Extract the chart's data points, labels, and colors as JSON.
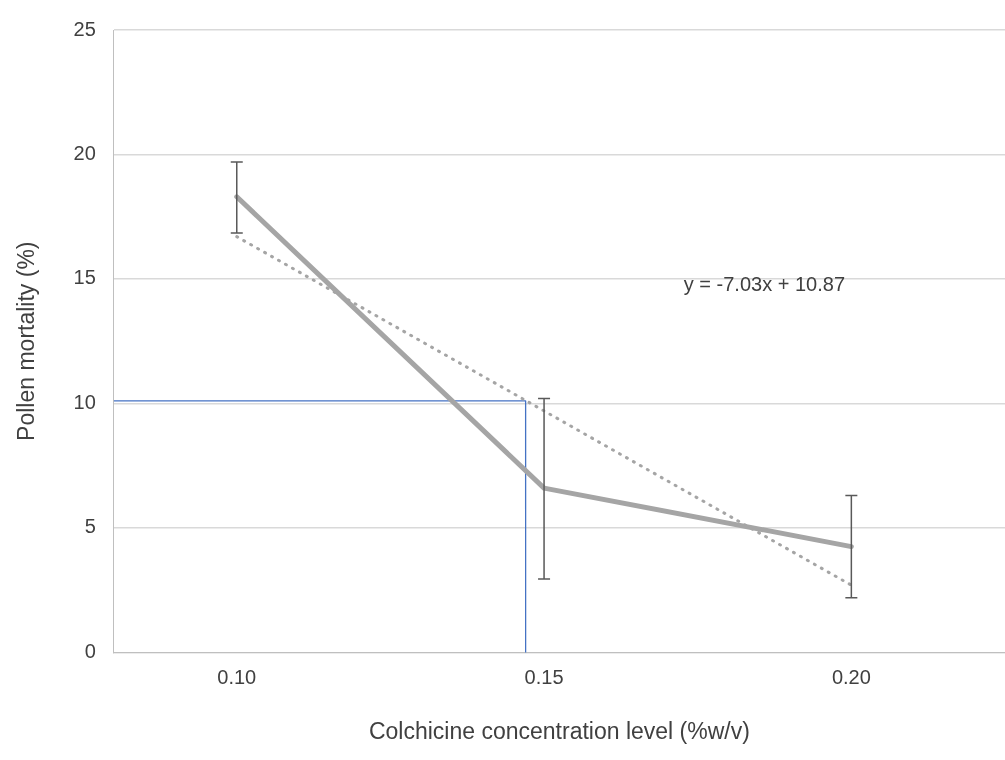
{
  "chart_data": {
    "type": "line",
    "xlabel": "Colchicine concentration level (%w/v)",
    "ylabel": "Pollen mortality (%)",
    "x": [
      0.1,
      0.15,
      0.2
    ],
    "xlim": [
      0.08,
      0.225
    ],
    "xticks": [
      {
        "value": 0.1,
        "label": "0.10"
      },
      {
        "value": 0.15,
        "label": "0.15"
      },
      {
        "value": 0.2,
        "label": "0.20"
      }
    ],
    "ylim": [
      0,
      25
    ],
    "yticks": [
      0,
      5,
      10,
      15,
      20,
      25
    ],
    "grid": "y",
    "legend": false,
    "marker": "none",
    "series": [
      {
        "color": "#a5a5a5",
        "values": [
          18.3,
          6.6,
          4.25
        ],
        "errors": [
          [
            16.85,
            19.7
          ],
          [
            2.95,
            10.2
          ],
          [
            2.2,
            6.3
          ]
        ],
        "line_style": "solid"
      },
      {
        "color": "#a5a5a5",
        "x": [
          0.1,
          0.2
        ],
        "values": [
          16.7,
          2.7
        ],
        "line_style": "dotted"
      },
      {
        "color": "#4472c4",
        "x": [
          0.08,
          0.147,
          0.147
        ],
        "values": [
          10.1,
          10.1,
          0
        ],
        "line_style": "solid"
      }
    ],
    "annotations": [
      "y = -7.03x + 10.87"
    ]
  }
}
